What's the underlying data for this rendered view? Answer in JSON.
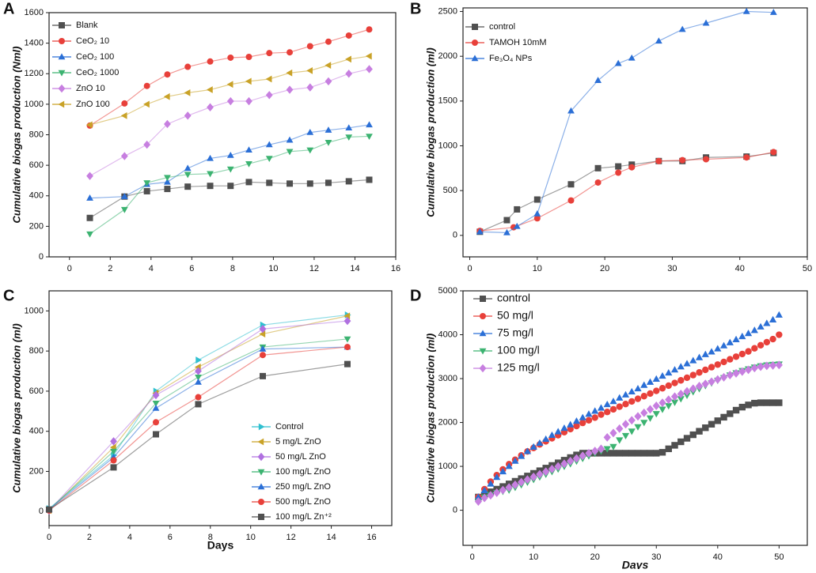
{
  "chart_data": [
    {
      "type": "line",
      "panel": "A",
      "ylabel": "Cumulative biogas production (Nml)",
      "xlim": [
        -1,
        16
      ],
      "ylim": [
        0,
        1600
      ],
      "xticks": [
        0,
        2,
        4,
        6,
        8,
        10,
        12,
        14,
        16
      ],
      "yticks": [
        0,
        200,
        400,
        600,
        800,
        1000,
        1200,
        1400,
        1600
      ],
      "lines": true,
      "legend": "top-left",
      "x": [
        1,
        2.7,
        3.8,
        4.8,
        5.8,
        6.9,
        7.9,
        8.8,
        9.8,
        10.8,
        11.8,
        12.7,
        13.7,
        14.7
      ],
      "series": [
        {
          "name": "Blank",
          "color": "#505050",
          "marker": "square",
          "values": [
            255,
            395,
            430,
            445,
            460,
            465,
            465,
            490,
            485,
            480,
            480,
            485,
            495,
            505
          ]
        },
        {
          "name": "CeO₂ 10",
          "color": "#e8403a",
          "marker": "circle",
          "values": [
            860,
            1005,
            1120,
            1195,
            1245,
            1280,
            1305,
            1310,
            1335,
            1340,
            1380,
            1410,
            1450,
            1490
          ]
        },
        {
          "name": "CeO₂ 100",
          "color": "#2b6fd6",
          "marker": "up",
          "values": [
            385,
            395,
            475,
            490,
            580,
            645,
            665,
            700,
            735,
            765,
            815,
            830,
            845,
            865
          ]
        },
        {
          "name": "CeO₂ 1000",
          "color": "#3cb371",
          "marker": "down",
          "values": [
            150,
            310,
            485,
            520,
            540,
            545,
            575,
            610,
            645,
            690,
            700,
            750,
            785,
            790
          ]
        },
        {
          "name": "ZnO 10",
          "color": "#c77fe0",
          "marker": "diamond",
          "values": [
            530,
            660,
            735,
            870,
            925,
            980,
            1020,
            1020,
            1060,
            1095,
            1110,
            1150,
            1200,
            1230
          ]
        },
        {
          "name": "ZnO 100",
          "color": "#c9a227",
          "marker": "left",
          "values": [
            865,
            925,
            1000,
            1050,
            1075,
            1095,
            1130,
            1150,
            1165,
            1205,
            1220,
            1255,
            1295,
            1315
          ]
        }
      ]
    },
    {
      "type": "line",
      "panel": "B",
      "ylabel": "Cumulative biogas production (ml)",
      "xlim": [
        -1,
        50
      ],
      "ylim": [
        -240,
        2540
      ],
      "xticks": [
        0,
        10,
        20,
        30,
        40,
        50
      ],
      "yticks": [
        0,
        500,
        1000,
        1500,
        2000,
        2500
      ],
      "lines": true,
      "legend": "top-left",
      "series": [
        {
          "name": "control",
          "color": "#505050",
          "marker": "square",
          "x": [
            1.5,
            5.5,
            7,
            10,
            15,
            19,
            22,
            24,
            28,
            31.5,
            35,
            41,
            45
          ],
          "values": [
            40,
            170,
            290,
            400,
            570,
            750,
            770,
            790,
            830,
            830,
            870,
            880,
            920
          ]
        },
        {
          "name": "TAMOH 10mM",
          "color": "#e8403a",
          "marker": "circle",
          "x": [
            1.5,
            6.5,
            10,
            15,
            19,
            22,
            24,
            28,
            31.5,
            35,
            41,
            45
          ],
          "values": [
            50,
            90,
            190,
            390,
            590,
            700,
            760,
            830,
            840,
            850,
            870,
            930
          ]
        },
        {
          "name": "Fe₃O₄ NPs",
          "color": "#2b6fd6",
          "marker": "up",
          "x": [
            1.5,
            5.5,
            7,
            10,
            15,
            19,
            22,
            24,
            28,
            31.5,
            35,
            41,
            45
          ],
          "values": [
            40,
            30,
            100,
            240,
            1390,
            1730,
            1920,
            1980,
            2170,
            2300,
            2370,
            2500,
            2490
          ]
        }
      ]
    },
    {
      "type": "line",
      "panel": "C",
      "ylabel": "Cumulative biogas production (ml)",
      "xlabel": "Days",
      "xlim": [
        0,
        17
      ],
      "ylim": [
        -70,
        1100
      ],
      "xticks": [
        0,
        2,
        4,
        6,
        8,
        10,
        12,
        14,
        16
      ],
      "yticks": [
        0,
        200,
        400,
        600,
        800,
        1000
      ],
      "lines": true,
      "legend": "bottom-right",
      "x": [
        0,
        3.2,
        5.3,
        7.4,
        10.6,
        14.8
      ],
      "series": [
        {
          "name": "Control",
          "color": "#30c0d0",
          "marker": "right",
          "values": [
            15,
            280,
            600,
            755,
            930,
            980
          ]
        },
        {
          "name": "5 mg/L ZnO",
          "color": "#c9a227",
          "marker": "left",
          "values": [
            5,
            320,
            590,
            720,
            885,
            975
          ]
        },
        {
          "name": "50 mg/L ZnO",
          "color": "#b070e0",
          "marker": "diamond",
          "values": [
            5,
            350,
            580,
            700,
            910,
            950
          ]
        },
        {
          "name": "100 mg/L ZnO",
          "color": "#3cb371",
          "marker": "down",
          "values": [
            10,
            300,
            540,
            670,
            820,
            860
          ]
        },
        {
          "name": "250 mg/L ZnO",
          "color": "#2b6fd6",
          "marker": "up",
          "values": [
            10,
            270,
            515,
            645,
            810,
            820
          ]
        },
        {
          "name": "500 mg/L ZnO",
          "color": "#e8403a",
          "marker": "circle",
          "values": [
            5,
            255,
            445,
            570,
            780,
            820
          ]
        },
        {
          "name": "100 mg/L Zn⁺²",
          "color": "#505050",
          "marker": "square",
          "values": [
            10,
            220,
            385,
            535,
            675,
            735
          ]
        }
      ]
    },
    {
      "type": "line",
      "panel": "D",
      "ylabel": "Cumulative biogas production (ml)",
      "xlabel": "Days",
      "xlim": [
        -1.5,
        54.6
      ],
      "ylim": [
        -800,
        5000
      ],
      "xticks": [
        0,
        10,
        20,
        30,
        40,
        50
      ],
      "yticks": [
        0,
        1000,
        2000,
        3000,
        4000,
        5000
      ],
      "lines": false,
      "legend": "top-left",
      "x": [
        1,
        2,
        3,
        4,
        5,
        6,
        7,
        8,
        9,
        10,
        11,
        12,
        13,
        14,
        15,
        16,
        17,
        18,
        19,
        20,
        21,
        22,
        23,
        24,
        25,
        26,
        27,
        28,
        29,
        30,
        31,
        32,
        33,
        34,
        35,
        36,
        37,
        38,
        39,
        40,
        41,
        42,
        43,
        44,
        45,
        46,
        47,
        48,
        49,
        50
      ],
      "series": [
        {
          "name": "control",
          "color": "#505050",
          "marker": "square",
          "values": [
            300,
            350,
            420,
            480,
            540,
            600,
            660,
            720,
            780,
            840,
            900,
            960,
            1020,
            1080,
            1140,
            1200,
            1260,
            1300,
            1300,
            1300,
            1300,
            1300,
            1300,
            1300,
            1300,
            1300,
            1300,
            1300,
            1300,
            1300,
            1320,
            1400,
            1480,
            1560,
            1640,
            1720,
            1800,
            1880,
            1960,
            2040,
            2120,
            2200,
            2280,
            2350,
            2400,
            2440,
            2450,
            2450,
            2450,
            2450
          ]
        },
        {
          "name": "50 mg/l",
          "color": "#e8403a",
          "marker": "circle",
          "values": [
            300,
            480,
            650,
            800,
            930,
            1050,
            1150,
            1250,
            1340,
            1420,
            1500,
            1570,
            1640,
            1710,
            1780,
            1850,
            1920,
            1990,
            2050,
            2110,
            2180,
            2240,
            2300,
            2360,
            2420,
            2480,
            2540,
            2600,
            2660,
            2720,
            2780,
            2840,
            2900,
            2960,
            3020,
            3080,
            3140,
            3200,
            3260,
            3320,
            3380,
            3440,
            3500,
            3560,
            3620,
            3690,
            3760,
            3830,
            3900,
            4000
          ]
        },
        {
          "name": "75 mg/l",
          "color": "#2b6fd6",
          "marker": "up",
          "values": [
            300,
            450,
            600,
            750,
            880,
            1000,
            1120,
            1230,
            1340,
            1440,
            1530,
            1620,
            1710,
            1790,
            1870,
            1950,
            2030,
            2110,
            2190,
            2260,
            2330,
            2410,
            2480,
            2560,
            2630,
            2700,
            2770,
            2850,
            2920,
            2990,
            3060,
            3130,
            3200,
            3270,
            3340,
            3410,
            3480,
            3550,
            3610,
            3680,
            3750,
            3820,
            3890,
            3960,
            4030,
            4100,
            4180,
            4260,
            4340,
            4450
          ]
        },
        {
          "name": "100 mg/l",
          "color": "#3cb371",
          "marker": "down",
          "values": [
            200,
            300,
            350,
            400,
            430,
            460,
            520,
            580,
            640,
            700,
            760,
            820,
            880,
            940,
            1000,
            1060,
            1120,
            1180,
            1240,
            1300,
            1350,
            1400,
            1450,
            1600,
            1700,
            1800,
            1900,
            2000,
            2100,
            2200,
            2300,
            2380,
            2460,
            2540,
            2620,
            2700,
            2770,
            2840,
            2900,
            2960,
            3020,
            3080,
            3130,
            3180,
            3220,
            3260,
            3290,
            3310,
            3320,
            3330
          ]
        },
        {
          "name": "125 mg/l",
          "color": "#c77fe0",
          "marker": "diamond",
          "values": [
            200,
            280,
            340,
            400,
            460,
            520,
            580,
            640,
            700,
            760,
            820,
            880,
            940,
            1000,
            1060,
            1120,
            1180,
            1240,
            1300,
            1350,
            1400,
            1660,
            1760,
            1860,
            1960,
            2050,
            2140,
            2220,
            2300,
            2380,
            2450,
            2520,
            2590,
            2650,
            2710,
            2770,
            2830,
            2880,
            2930,
            2980,
            3030,
            3080,
            3120,
            3160,
            3200,
            3240,
            3270,
            3290,
            3300,
            3310
          ]
        }
      ]
    }
  ]
}
